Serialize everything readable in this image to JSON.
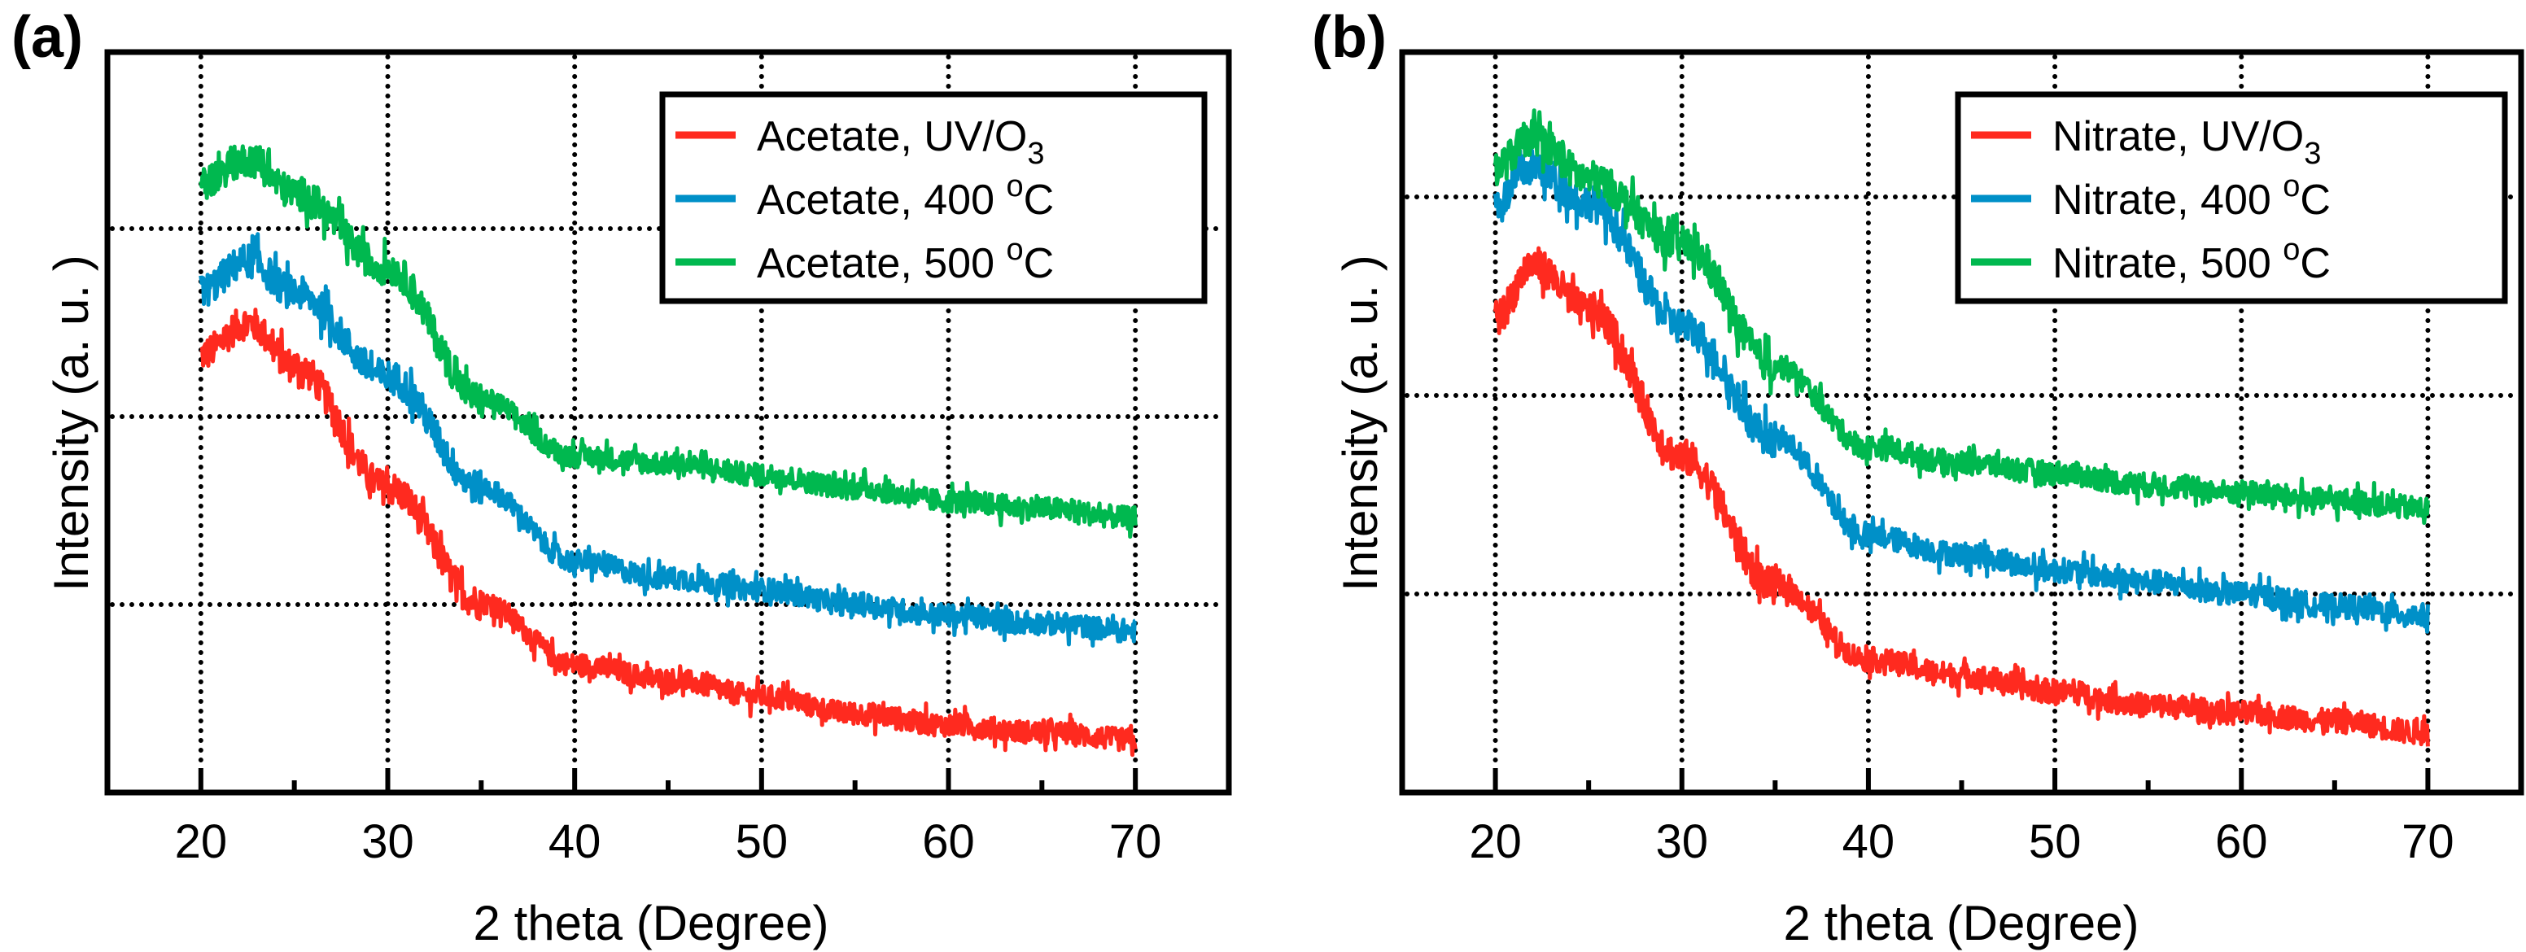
{
  "colors": {
    "red": "#ff2a1f",
    "blue": "#0090c8",
    "green": "#00b84f"
  },
  "chart_data": [
    {
      "type": "line",
      "panel_label": "(a)",
      "xlabel": "2 theta (Degree)",
      "ylabel": "Intensity (a. u. )",
      "xlim": [
        15,
        75
      ],
      "ylim": [
        0,
        3.93
      ],
      "xticks": [
        "20",
        "30",
        "40",
        "50",
        "60",
        "70"
      ],
      "grid": true,
      "legend_position": "top-right",
      "x": [
        20,
        22.5,
        25,
        30,
        35,
        40,
        45,
        50,
        55,
        60,
        65,
        70
      ],
      "series": [
        {
          "name": "Acetate, UV/O3",
          "label": "Acetate, UV/O",
          "sub": "3",
          "sup": "",
          "tail": "",
          "color": "#ff2a1f",
          "values": [
            2.33,
            2.5,
            2.27,
            1.62,
            1.01,
            0.68,
            0.6,
            0.51,
            0.42,
            0.36,
            0.32,
            0.28
          ]
        },
        {
          "name": "Acetate, 400 oC",
          "label": "Acetate, 400 ",
          "sub": "",
          "sup": "o",
          "tail": "C",
          "color": "#0090c8",
          "values": [
            2.67,
            2.83,
            2.66,
            2.21,
            1.62,
            1.23,
            1.14,
            1.08,
            1.0,
            0.94,
            0.9,
            0.86
          ]
        },
        {
          "name": "Acetate, 500 oC",
          "label": "Acetate, 500 ",
          "sub": "",
          "sup": "o",
          "tail": "C",
          "color": "#00b84f",
          "values": [
            3.25,
            3.37,
            3.19,
            2.79,
            2.09,
            1.79,
            1.75,
            1.69,
            1.62,
            1.55,
            1.51,
            1.46
          ]
        }
      ]
    },
    {
      "type": "line",
      "panel_label": "(b)",
      "xlabel": "2 theta (Degree)",
      "ylabel": "Intensity (a. u. )",
      "xlim": [
        15,
        75
      ],
      "ylim": [
        0,
        3.72
      ],
      "xticks": [
        "20",
        "30",
        "40",
        "50",
        "60",
        "70"
      ],
      "grid": true,
      "legend_position": "top-right",
      "x": [
        20,
        22,
        25,
        30,
        35,
        40,
        45,
        50,
        55,
        60,
        65,
        70
      ],
      "series": [
        {
          "name": "Nitrate, UV/O3",
          "label": "Nitrate, UV/O",
          "sub": "3",
          "sup": "",
          "tail": "",
          "color": "#ff2a1f",
          "values": [
            2.39,
            2.66,
            2.43,
            1.69,
            1.04,
            0.67,
            0.59,
            0.51,
            0.44,
            0.4,
            0.36,
            0.3
          ]
        },
        {
          "name": "Nitrate, 400 oC",
          "label": "Nitrate, 400 ",
          "sub": "",
          "sup": "o",
          "tail": "C",
          "color": "#0090c8",
          "values": [
            2.97,
            3.15,
            2.97,
            2.35,
            1.78,
            1.29,
            1.2,
            1.12,
            1.06,
            1.0,
            0.94,
            0.89
          ]
        },
        {
          "name": "Nitrate, 500 oC",
          "label": "Nitrate, 500 ",
          "sub": "",
          "sup": "o",
          "tail": "C",
          "color": "#00b84f",
          "values": [
            3.15,
            3.3,
            3.09,
            2.76,
            2.15,
            1.74,
            1.66,
            1.61,
            1.55,
            1.51,
            1.47,
            1.43
          ]
        }
      ]
    }
  ]
}
